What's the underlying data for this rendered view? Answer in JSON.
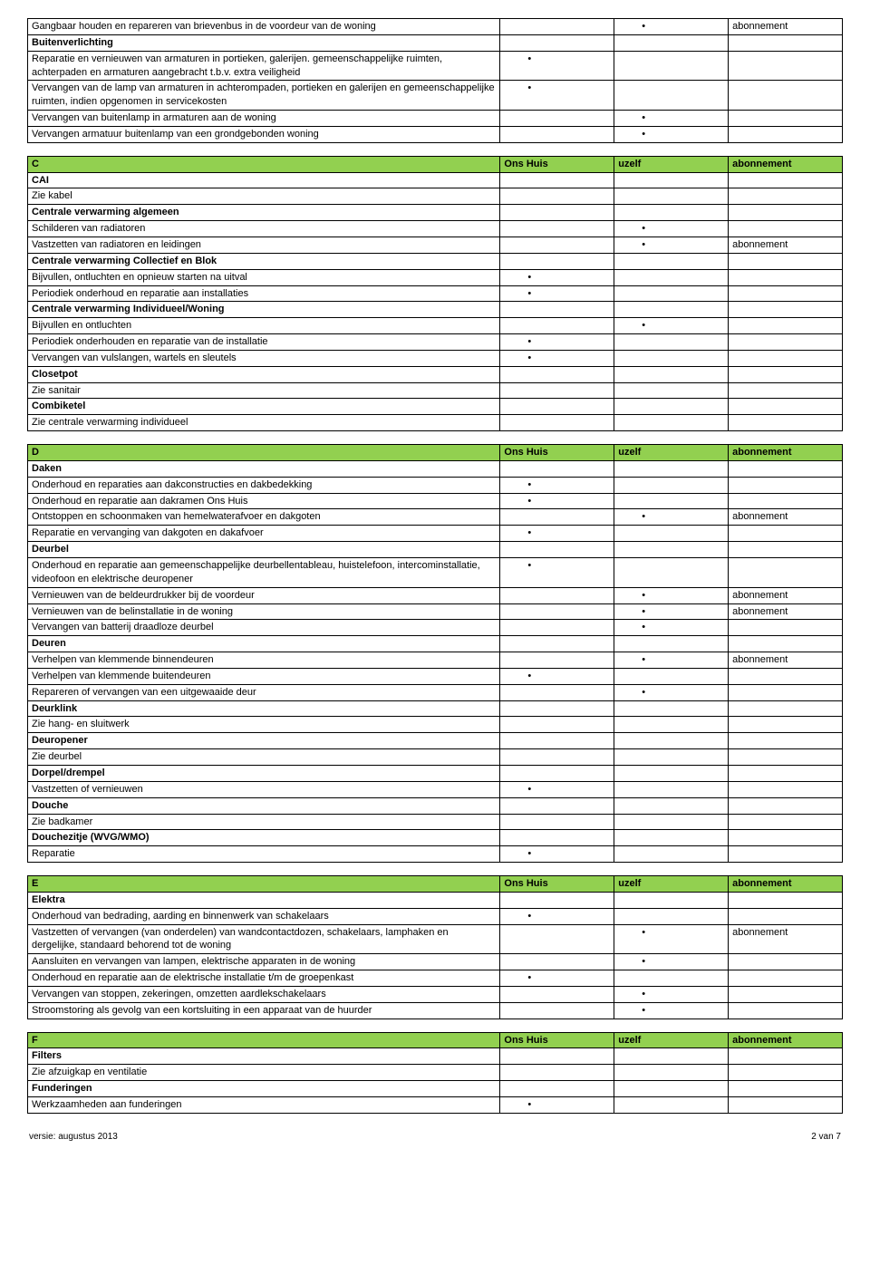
{
  "colors": {
    "header_bg": "#92d050",
    "border": "#000000",
    "text": "#000000",
    "page_bg": "#ffffff"
  },
  "dot": "•",
  "labels": {
    "ons_huis": "Ons Huis",
    "uzelf": "uzelf",
    "abonnement": "abonnement"
  },
  "intro_rows": [
    {
      "text": "Gangbaar houden en repareren van brievenbus in de voordeur van de woning",
      "uzelf": true,
      "abon": true
    },
    {
      "text": "Buitenverlichting",
      "bold": true
    },
    {
      "text": "Reparatie en vernieuwen van armaturen in portieken, galerijen. gemeenschappelijke ruimten, achterpaden en armaturen aangebracht t.b.v. extra veiligheid",
      "ons": true
    },
    {
      "text": "Vervangen van de lamp van armaturen in achterompaden, portieken en galerijen en gemeenschappelijke ruimten, indien opgenomen in servicekosten",
      "ons": true
    },
    {
      "text": "Vervangen van buitenlamp in armaturen aan de woning",
      "uzelf": true
    },
    {
      "text": "Vervangen armatuur buitenlamp van een grondgebonden woning",
      "uzelf": true
    }
  ],
  "sections": [
    {
      "letter": "C",
      "rows": [
        {
          "text": "CAI",
          "bold": true
        },
        {
          "text": "Zie kabel"
        },
        {
          "text": "Centrale verwarming algemeen",
          "bold": true
        },
        {
          "text": "Schilderen van radiatoren",
          "uzelf": true
        },
        {
          "text": "Vastzetten van radiatoren en leidingen",
          "uzelf": true,
          "abon": true
        },
        {
          "text": "Centrale verwarming Collectief en Blok",
          "bold": true
        },
        {
          "text": "Bijvullen, ontluchten en opnieuw starten na uitval",
          "ons": true
        },
        {
          "text": "Periodiek onderhoud en reparatie aan installaties",
          "ons": true
        },
        {
          "text": "Centrale verwarming Individueel/Woning",
          "bold": true
        },
        {
          "text": "Bijvullen en ontluchten",
          "uzelf": true
        },
        {
          "text": "Periodiek onderhouden en reparatie van de installatie",
          "ons": true
        },
        {
          "text": "Vervangen van vulslangen, wartels en sleutels",
          "ons": true
        },
        {
          "text": "Closetpot",
          "bold": true
        },
        {
          "text": "Zie sanitair"
        },
        {
          "text": "Combiketel",
          "bold": true
        },
        {
          "text": "Zie centrale verwarming individueel"
        }
      ]
    },
    {
      "letter": "D",
      "rows": [
        {
          "text": "Daken",
          "bold": true
        },
        {
          "text": "Onderhoud en reparaties aan dakconstructies en dakbedekking",
          "ons": true
        },
        {
          "text": "Onderhoud en reparatie aan dakramen Ons Huis",
          "ons": true
        },
        {
          "text": "Ontstoppen en schoonmaken van hemelwaterafvoer en dakgoten",
          "uzelf": true,
          "abon": true
        },
        {
          "text": "Reparatie en vervanging van dakgoten en dakafvoer",
          "ons": true
        },
        {
          "text": "Deurbel",
          "bold": true
        },
        {
          "text": "Onderhoud en reparatie aan gemeenschappelijke deurbellentableau, huistelefoon, intercominstallatie, videofoon en elektrische deuropener",
          "ons": true
        },
        {
          "text": "Vernieuwen van de beldeurdrukker bij de voordeur",
          "uzelf": true,
          "abon": true
        },
        {
          "text": "Vernieuwen van de belinstallatie in de woning",
          "uzelf": true,
          "abon": true
        },
        {
          "text": "Vervangen van batterij draadloze deurbel",
          "uzelf": true
        },
        {
          "text": "Deuren",
          "bold": true
        },
        {
          "text": "Verhelpen van klemmende binnendeuren",
          "uzelf": true,
          "abon": true
        },
        {
          "text": "Verhelpen van klemmende buitendeuren",
          "ons": true
        },
        {
          "text": "Repareren of vervangen van een uitgewaaide deur",
          "uzelf": true
        },
        {
          "text": "Deurklink",
          "bold": true
        },
        {
          "text": "Zie hang- en sluitwerk"
        },
        {
          "text": "Deuropener",
          "bold": true
        },
        {
          "text": "Zie deurbel"
        },
        {
          "text": "Dorpel/drempel",
          "bold": true
        },
        {
          "text": "Vastzetten of vernieuwen",
          "ons": true
        },
        {
          "text": "Douche",
          "bold": true
        },
        {
          "text": "Zie badkamer"
        },
        {
          "text": "Douchezitje (WVG/WMO)",
          "bold": true
        },
        {
          "text": "Reparatie",
          "ons": true
        }
      ]
    },
    {
      "letter": "E",
      "rows": [
        {
          "text": "Elektra",
          "bold": true
        },
        {
          "text": "Onderhoud van bedrading, aarding en binnenwerk van schakelaars",
          "ons": true
        },
        {
          "text": "Vastzetten of vervangen (van onderdelen) van wandcontactdozen, schakelaars, lamphaken en dergelijke, standaard behorend tot de woning",
          "uzelf": true,
          "abon": true
        },
        {
          "text": "Aansluiten en vervangen van lampen, elektrische apparaten in de woning",
          "uzelf": true
        },
        {
          "text": "Onderhoud en reparatie aan de elektrische installatie t/m de groepenkast",
          "ons": true
        },
        {
          "text": "Vervangen van stoppen, zekeringen, omzetten aardlekschakelaars",
          "uzelf": true
        },
        {
          "text": "Stroomstoring als gevolg van een kortsluiting in een apparaat van de huurder",
          "uzelf": true
        }
      ]
    },
    {
      "letter": "F",
      "rows": [
        {
          "text": "Filters",
          "bold": true
        },
        {
          "text": "Zie afzuigkap en ventilatie"
        },
        {
          "text": "Funderingen",
          "bold": true
        },
        {
          "text": "Werkzaamheden aan funderingen",
          "ons": true
        }
      ]
    }
  ],
  "footer": {
    "left": "versie: augustus 2013",
    "right": "2 van 7"
  }
}
